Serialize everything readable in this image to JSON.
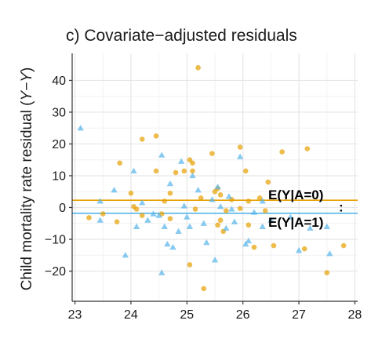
{
  "chart_data": {
    "type": "scatter",
    "title": "c) Covariate−adjusted residuals",
    "xlabel": "",
    "ylabel_prefix": "Child mortality rate residual (",
    "ylabel_math": "Y−",
    "ylabel_hat": "Y",
    "ylabel_suffix": ")",
    "xlim": [
      22.95,
      28.05
    ],
    "ylim": [
      -29.5,
      48.5
    ],
    "xticks": [
      23,
      24,
      25,
      26,
      27,
      28
    ],
    "yticks": [
      -20,
      -10,
      0,
      10,
      20,
      30,
      40
    ],
    "grid": true,
    "colors": {
      "group0": "#E69F00",
      "group1": "#56B4E9"
    },
    "reference_lines": [
      {
        "label": "E(Y|A=0)",
        "y": 2.3,
        "color": "#E69F00"
      },
      {
        "label": "E(Y|A=1)",
        "y": -1.8,
        "color": "#56B4E9"
      }
    ],
    "annotation_dots": ":",
    "series": [
      {
        "marker": "circle",
        "color": "#E69F00",
        "points": [
          [
            23.25,
            -3.2
          ],
          [
            23.5,
            -2.0
          ],
          [
            23.75,
            -4.5
          ],
          [
            23.8,
            14.0
          ],
          [
            24.0,
            4.5
          ],
          [
            24.05,
            0.3
          ],
          [
            24.1,
            -0.5
          ],
          [
            24.2,
            21.5
          ],
          [
            24.2,
            -2.5
          ],
          [
            24.45,
            22.5
          ],
          [
            24.45,
            11.5
          ],
          [
            24.55,
            -2.0
          ],
          [
            24.6,
            2.0
          ],
          [
            24.7,
            4.5
          ],
          [
            24.7,
            -3.5
          ],
          [
            24.8,
            11.0
          ],
          [
            24.95,
            11.5
          ],
          [
            25.05,
            15.0
          ],
          [
            25.1,
            14.0
          ],
          [
            25.1,
            11.5
          ],
          [
            25.05,
            -18.0
          ],
          [
            25.15,
            -0.5
          ],
          [
            25.2,
            44.0
          ],
          [
            25.25,
            3.0
          ],
          [
            25.3,
            -25.5
          ],
          [
            25.45,
            17.0
          ],
          [
            25.5,
            5.0
          ],
          [
            25.55,
            6.0
          ],
          [
            25.55,
            -5.5
          ],
          [
            25.6,
            -4.0
          ],
          [
            25.6,
            4.0
          ],
          [
            25.65,
            -7.5
          ],
          [
            25.7,
            -1.0
          ],
          [
            25.8,
            2.5
          ],
          [
            25.95,
            19.0
          ],
          [
            25.95,
            -0.3
          ],
          [
            26.05,
            11.5
          ],
          [
            26.1,
            2.0
          ],
          [
            26.1,
            -5.5
          ],
          [
            26.2,
            -12.5
          ],
          [
            26.3,
            3.0
          ],
          [
            26.4,
            -1.0
          ],
          [
            26.45,
            8.0
          ],
          [
            26.55,
            -12.0
          ],
          [
            26.7,
            17.5
          ],
          [
            27.1,
            -13.0
          ],
          [
            27.15,
            18.5
          ],
          [
            27.5,
            -20.5
          ],
          [
            27.8,
            -12.0
          ]
        ]
      },
      {
        "marker": "triangle",
        "color": "#56B4E9",
        "points": [
          [
            23.1,
            25.0
          ],
          [
            23.45,
            -4.0
          ],
          [
            23.45,
            2.0
          ],
          [
            23.7,
            5.5
          ],
          [
            23.9,
            -15.0
          ],
          [
            24.05,
            11.5
          ],
          [
            24.1,
            -6.0
          ],
          [
            24.2,
            1.5
          ],
          [
            24.3,
            -4.0
          ],
          [
            24.4,
            -2.0
          ],
          [
            24.5,
            -2.5
          ],
          [
            24.55,
            -20.5
          ],
          [
            24.55,
            16.5
          ],
          [
            24.6,
            -6.0
          ],
          [
            24.65,
            -11.5
          ],
          [
            24.7,
            7.5
          ],
          [
            24.75,
            -12.5
          ],
          [
            24.85,
            -7.5
          ],
          [
            24.9,
            14.5
          ],
          [
            24.95,
            0.5
          ],
          [
            25.0,
            -3.0
          ],
          [
            25.05,
            -6.0
          ],
          [
            25.1,
            10.0
          ],
          [
            25.2,
            5.5
          ],
          [
            25.3,
            -5.0
          ],
          [
            25.35,
            -11.0
          ],
          [
            25.45,
            2.5
          ],
          [
            25.5,
            -16.5
          ],
          [
            25.55,
            6.5
          ],
          [
            25.6,
            0.3
          ],
          [
            25.7,
            -6.5
          ],
          [
            25.75,
            3.5
          ],
          [
            25.8,
            -0.5
          ],
          [
            25.85,
            -4.5
          ],
          [
            25.95,
            16.0
          ],
          [
            26.05,
            -11.5
          ],
          [
            26.1,
            -10.5
          ],
          [
            26.2,
            -1.5
          ],
          [
            26.35,
            -6.0
          ],
          [
            26.35,
            2.0
          ],
          [
            26.5,
            -4.0
          ],
          [
            26.85,
            -3.0
          ],
          [
            27.0,
            -13.5
          ],
          [
            27.2,
            -6.5
          ],
          [
            27.5,
            -6.0
          ],
          [
            27.55,
            -14.5
          ]
        ]
      }
    ]
  }
}
